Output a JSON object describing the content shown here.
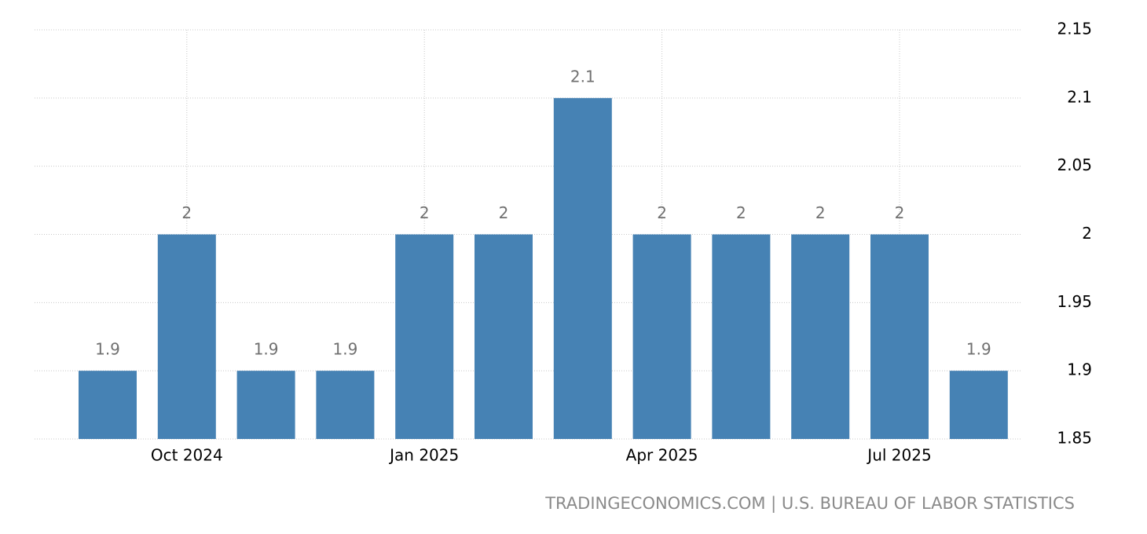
{
  "chart_data": {
    "type": "bar",
    "categories": [
      null,
      "Oct 2024",
      null,
      null,
      "Jan 2025",
      null,
      null,
      "Apr 2025",
      null,
      null,
      "Jul 2025",
      null
    ],
    "values": [
      1.9,
      2,
      1.9,
      1.9,
      2,
      2,
      2.1,
      2,
      2,
      2,
      2,
      1.9
    ],
    "color": "#4682b4",
    "ylim": [
      1.85,
      2.15
    ],
    "yticks": [
      1.85,
      1.9,
      1.95,
      2,
      2.05,
      2.1,
      2.15
    ],
    "grid": true,
    "source": "TRADINGECONOMICS.COM | U.S. BUREAU OF LABOR STATISTICS"
  }
}
